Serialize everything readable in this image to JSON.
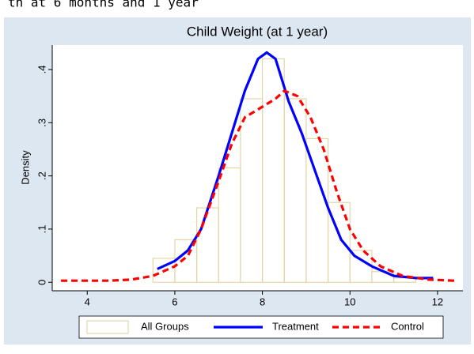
{
  "header_fragment": "th at 6 months and 1 year",
  "chart_data": {
    "type": "histogram",
    "title": "Child Weight (at 1 year)",
    "ylabel": "Density",
    "histogram_name": "All Groups",
    "histogram_color": "#e3d6a6",
    "bins": [
      5.5,
      6,
      6.5,
      7,
      7.5,
      8,
      8.5,
      9,
      9.5,
      10,
      10.5,
      11,
      11.5
    ],
    "counts": [
      0.045,
      0.08,
      0.14,
      0.215,
      0.345,
      0.42,
      0.345,
      0.27,
      0.15,
      0.06,
      0.02,
      0.008
    ],
    "series": [
      {
        "name": "Treatment",
        "color": "#0000ff",
        "style": "solid",
        "x": [
          5.6,
          6.0,
          6.3,
          6.6,
          7.0,
          7.3,
          7.6,
          7.9,
          8.1,
          8.3,
          8.6,
          8.9,
          9.2,
          9.5,
          9.8,
          10.1,
          10.5,
          11.0,
          11.5,
          11.9
        ],
        "values": [
          0.025,
          0.04,
          0.06,
          0.1,
          0.2,
          0.28,
          0.36,
          0.42,
          0.432,
          0.42,
          0.34,
          0.28,
          0.21,
          0.14,
          0.08,
          0.05,
          0.03,
          0.012,
          0.008,
          0.008
        ]
      },
      {
        "name": "Control",
        "color": "#ff0000",
        "style": "dashed",
        "x": [
          3.4,
          4.5,
          5.0,
          5.5,
          6.0,
          6.3,
          6.6,
          7.0,
          7.3,
          7.6,
          8.0,
          8.3,
          8.5,
          8.8,
          9.1,
          9.4,
          9.7,
          10.0,
          10.3,
          10.7,
          11.2,
          11.8,
          12.4
        ],
        "values": [
          0.003,
          0.003,
          0.005,
          0.012,
          0.03,
          0.05,
          0.1,
          0.19,
          0.26,
          0.31,
          0.33,
          0.345,
          0.36,
          0.35,
          0.31,
          0.25,
          0.17,
          0.1,
          0.06,
          0.03,
          0.012,
          0.005,
          0.003
        ]
      }
    ],
    "xlim": [
      3.2,
      12.58
    ],
    "xticks": [
      4,
      6,
      8,
      10,
      12
    ],
    "ylim": [
      -0.016,
      0.446
    ],
    "yticks": [
      {
        "value": 0,
        "label": "0"
      },
      {
        "value": 0.1,
        "label": ".1"
      },
      {
        "value": 0.2,
        "label": ".2"
      },
      {
        "value": 0.3,
        "label": ".3"
      },
      {
        "value": 0.4,
        "label": ".4"
      }
    ],
    "grid": false,
    "legend": "bottom"
  }
}
